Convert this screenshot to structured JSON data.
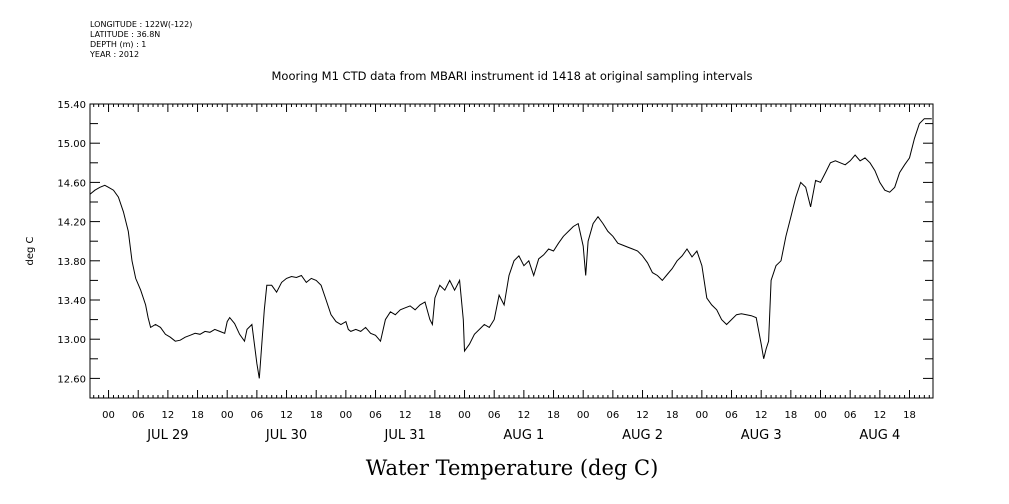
{
  "header": {
    "lines": [
      "LONGITUDE : 122W(-122)",
      "LATITUDE : 36.8N",
      "DEPTH (m) : 1",
      "YEAR : 2012"
    ]
  },
  "chart_data": {
    "type": "line",
    "title": "Mooring M1 CTD data from MBARI instrument id 1418 at original sampling intervals",
    "xlabel": "Water Temperature (deg C)",
    "ylabel": "deg C",
    "ylim": [
      12.4,
      15.4
    ],
    "yticks": [
      "15.40",
      "15.00",
      "14.60",
      "14.20",
      "13.80",
      "13.40",
      "13.00",
      "12.60"
    ],
    "xlim_hours": [
      -3.75,
      166.75
    ],
    "hour_ticks": [
      "00",
      "06",
      "12",
      "18",
      "00",
      "06",
      "12",
      "18",
      "00",
      "06",
      "12",
      "18",
      "00",
      "06",
      "12",
      "18",
      "00",
      "06",
      "12",
      "18",
      "00",
      "06",
      "12",
      "18",
      "00",
      "06",
      "12",
      "18"
    ],
    "day_labels": [
      "JUL 29",
      "JUL 30",
      "JUL 31",
      "AUG  1",
      "AUG  2",
      "AUG  3",
      "AUG  4"
    ],
    "series": [
      {
        "values": [
          [
            -3.75,
            14.48
          ],
          [
            -2.75,
            14.52
          ],
          [
            -1.75,
            14.55
          ],
          [
            -0.75,
            14.57
          ],
          [
            0,
            14.55
          ],
          [
            1,
            14.52
          ],
          [
            2,
            14.45
          ],
          [
            3,
            14.3
          ],
          [
            4,
            14.1
          ],
          [
            4.75,
            13.8
          ],
          [
            5.5,
            13.62
          ],
          [
            6.5,
            13.5
          ],
          [
            7.5,
            13.35
          ],
          [
            8,
            13.22
          ],
          [
            8.5,
            13.12
          ],
          [
            9.5,
            13.15
          ],
          [
            10.5,
            13.12
          ],
          [
            11.5,
            13.05
          ],
          [
            12.5,
            13.02
          ],
          [
            13.5,
            12.98
          ],
          [
            14.5,
            12.99
          ],
          [
            15.5,
            13.02
          ],
          [
            16.5,
            13.04
          ],
          [
            17.5,
            13.06
          ],
          [
            18.5,
            13.05
          ],
          [
            19.5,
            13.08
          ],
          [
            20.5,
            13.07
          ],
          [
            21.5,
            13.1
          ],
          [
            22.5,
            13.08
          ],
          [
            23.5,
            13.06
          ],
          [
            24,
            13.18
          ],
          [
            24.5,
            13.22
          ],
          [
            25.5,
            13.16
          ],
          [
            26.5,
            13.05
          ],
          [
            27.5,
            12.98
          ],
          [
            28,
            13.1
          ],
          [
            29,
            13.15
          ],
          [
            30,
            12.75
          ],
          [
            30.5,
            12.6
          ],
          [
            31,
            12.95
          ],
          [
            31.5,
            13.3
          ],
          [
            32,
            13.55
          ],
          [
            33,
            13.55
          ],
          [
            34,
            13.48
          ],
          [
            35,
            13.58
          ],
          [
            36,
            13.62
          ],
          [
            37,
            13.64
          ],
          [
            38,
            13.63
          ],
          [
            39,
            13.65
          ],
          [
            40,
            13.58
          ],
          [
            41,
            13.62
          ],
          [
            42,
            13.6
          ],
          [
            43,
            13.55
          ],
          [
            44,
            13.4
          ],
          [
            45,
            13.25
          ],
          [
            46,
            13.18
          ],
          [
            47,
            13.15
          ],
          [
            48,
            13.18
          ],
          [
            48.5,
            13.1
          ],
          [
            49,
            13.08
          ],
          [
            50,
            13.1
          ],
          [
            51,
            13.08
          ],
          [
            52,
            13.12
          ],
          [
            53,
            13.06
          ],
          [
            54,
            13.04
          ],
          [
            55,
            12.98
          ],
          [
            56,
            13.2
          ],
          [
            57,
            13.28
          ],
          [
            58,
            13.25
          ],
          [
            59,
            13.3
          ],
          [
            60,
            13.32
          ],
          [
            61,
            13.34
          ],
          [
            62,
            13.3
          ],
          [
            63,
            13.35
          ],
          [
            64,
            13.38
          ],
          [
            65,
            13.2
          ],
          [
            65.5,
            13.15
          ],
          [
            66,
            13.42
          ],
          [
            67,
            13.55
          ],
          [
            68,
            13.5
          ],
          [
            69,
            13.6
          ],
          [
            70,
            13.5
          ],
          [
            71,
            13.6
          ],
          [
            71.75,
            13.2
          ],
          [
            72,
            12.88
          ],
          [
            73,
            12.95
          ],
          [
            74,
            13.05
          ],
          [
            75,
            13.1
          ],
          [
            76,
            13.15
          ],
          [
            77,
            13.12
          ],
          [
            78,
            13.2
          ],
          [
            79,
            13.45
          ],
          [
            80,
            13.35
          ],
          [
            81,
            13.65
          ],
          [
            82,
            13.8
          ],
          [
            83,
            13.85
          ],
          [
            84,
            13.75
          ],
          [
            85,
            13.8
          ],
          [
            86,
            13.65
          ],
          [
            87,
            13.82
          ],
          [
            88,
            13.86
          ],
          [
            89,
            13.92
          ],
          [
            90,
            13.9
          ],
          [
            91,
            13.98
          ],
          [
            92,
            14.05
          ],
          [
            93,
            14.1
          ],
          [
            94,
            14.15
          ],
          [
            95,
            14.18
          ],
          [
            96,
            13.95
          ],
          [
            96.5,
            13.65
          ],
          [
            97,
            14.0
          ],
          [
            98,
            14.18
          ],
          [
            99,
            14.25
          ],
          [
            100,
            14.18
          ],
          [
            101,
            14.1
          ],
          [
            102,
            14.05
          ],
          [
            103,
            13.98
          ],
          [
            104,
            13.96
          ],
          [
            105,
            13.94
          ],
          [
            106,
            13.92
          ],
          [
            107,
            13.9
          ],
          [
            108,
            13.85
          ],
          [
            109,
            13.78
          ],
          [
            110,
            13.68
          ],
          [
            111,
            13.65
          ],
          [
            112,
            13.6
          ],
          [
            113,
            13.66
          ],
          [
            114,
            13.72
          ],
          [
            115,
            13.8
          ],
          [
            116,
            13.85
          ],
          [
            117,
            13.92
          ],
          [
            118,
            13.84
          ],
          [
            119,
            13.9
          ],
          [
            120,
            13.75
          ],
          [
            121,
            13.42
          ],
          [
            122,
            13.35
          ],
          [
            123,
            13.3
          ],
          [
            124,
            13.2
          ],
          [
            125,
            13.15
          ],
          [
            126,
            13.2
          ],
          [
            127,
            13.25
          ],
          [
            128,
            13.26
          ],
          [
            129,
            13.25
          ],
          [
            130,
            13.24
          ],
          [
            131,
            13.22
          ],
          [
            132,
            12.95
          ],
          [
            132.5,
            12.8
          ],
          [
            133,
            12.9
          ],
          [
            133.5,
            12.98
          ],
          [
            134,
            13.6
          ],
          [
            135,
            13.75
          ],
          [
            136,
            13.8
          ],
          [
            137,
            14.05
          ],
          [
            138,
            14.25
          ],
          [
            139,
            14.45
          ],
          [
            140,
            14.6
          ],
          [
            141,
            14.55
          ],
          [
            142,
            14.35
          ],
          [
            143,
            14.62
          ],
          [
            144,
            14.6
          ],
          [
            145,
            14.7
          ],
          [
            146,
            14.8
          ],
          [
            147,
            14.82
          ],
          [
            148,
            14.8
          ],
          [
            149,
            14.78
          ],
          [
            150,
            14.82
          ],
          [
            151,
            14.88
          ],
          [
            152,
            14.82
          ],
          [
            153,
            14.85
          ],
          [
            154,
            14.8
          ],
          [
            155,
            14.72
          ],
          [
            156,
            14.6
          ],
          [
            157,
            14.52
          ],
          [
            158,
            14.5
          ],
          [
            159,
            14.55
          ],
          [
            160,
            14.7
          ],
          [
            161,
            14.78
          ],
          [
            162,
            14.85
          ],
          [
            163,
            15.05
          ],
          [
            164,
            15.2
          ],
          [
            165,
            15.25
          ],
          [
            166.5,
            15.25
          ]
        ]
      }
    ],
    "grid": false,
    "colors": {
      "line": "#000000",
      "axis": "#000000",
      "background": "#ffffff"
    }
  }
}
